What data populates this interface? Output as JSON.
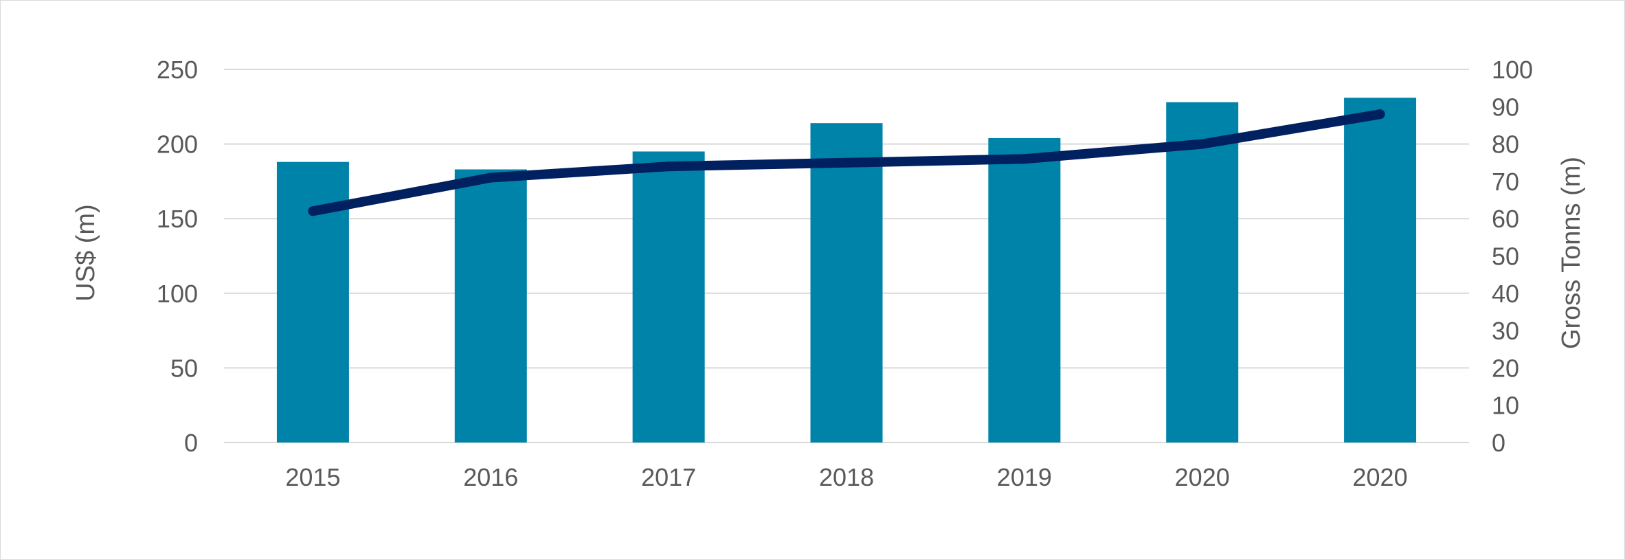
{
  "chart_data": {
    "type": "bar",
    "categories": [
      "2015",
      "2016",
      "2017",
      "2018",
      "2019",
      "2020",
      "2020"
    ],
    "series": [
      {
        "type": "bar",
        "axis": "left",
        "values": [
          188,
          183,
          195,
          214,
          204,
          228,
          231
        ]
      },
      {
        "type": "line",
        "axis": "right",
        "values": [
          62,
          71,
          74,
          75,
          76,
          80,
          88
        ]
      }
    ],
    "ylabel": "US$  (m)",
    "y2label": "Gross Tonns (m)",
    "ylim": [
      0,
      250
    ],
    "y2lim": [
      0,
      100
    ],
    "yticks": [
      "0",
      "50",
      "100",
      "150",
      "200",
      "250"
    ],
    "y2ticks": [
      "0",
      "10",
      "20",
      "30",
      "40",
      "50",
      "60",
      "70",
      "80",
      "90",
      "100"
    ],
    "grid": true,
    "colors": {
      "bar": "#0083A9",
      "line": "#002060",
      "grid": "#d9d9d9",
      "text": "#595959"
    }
  }
}
